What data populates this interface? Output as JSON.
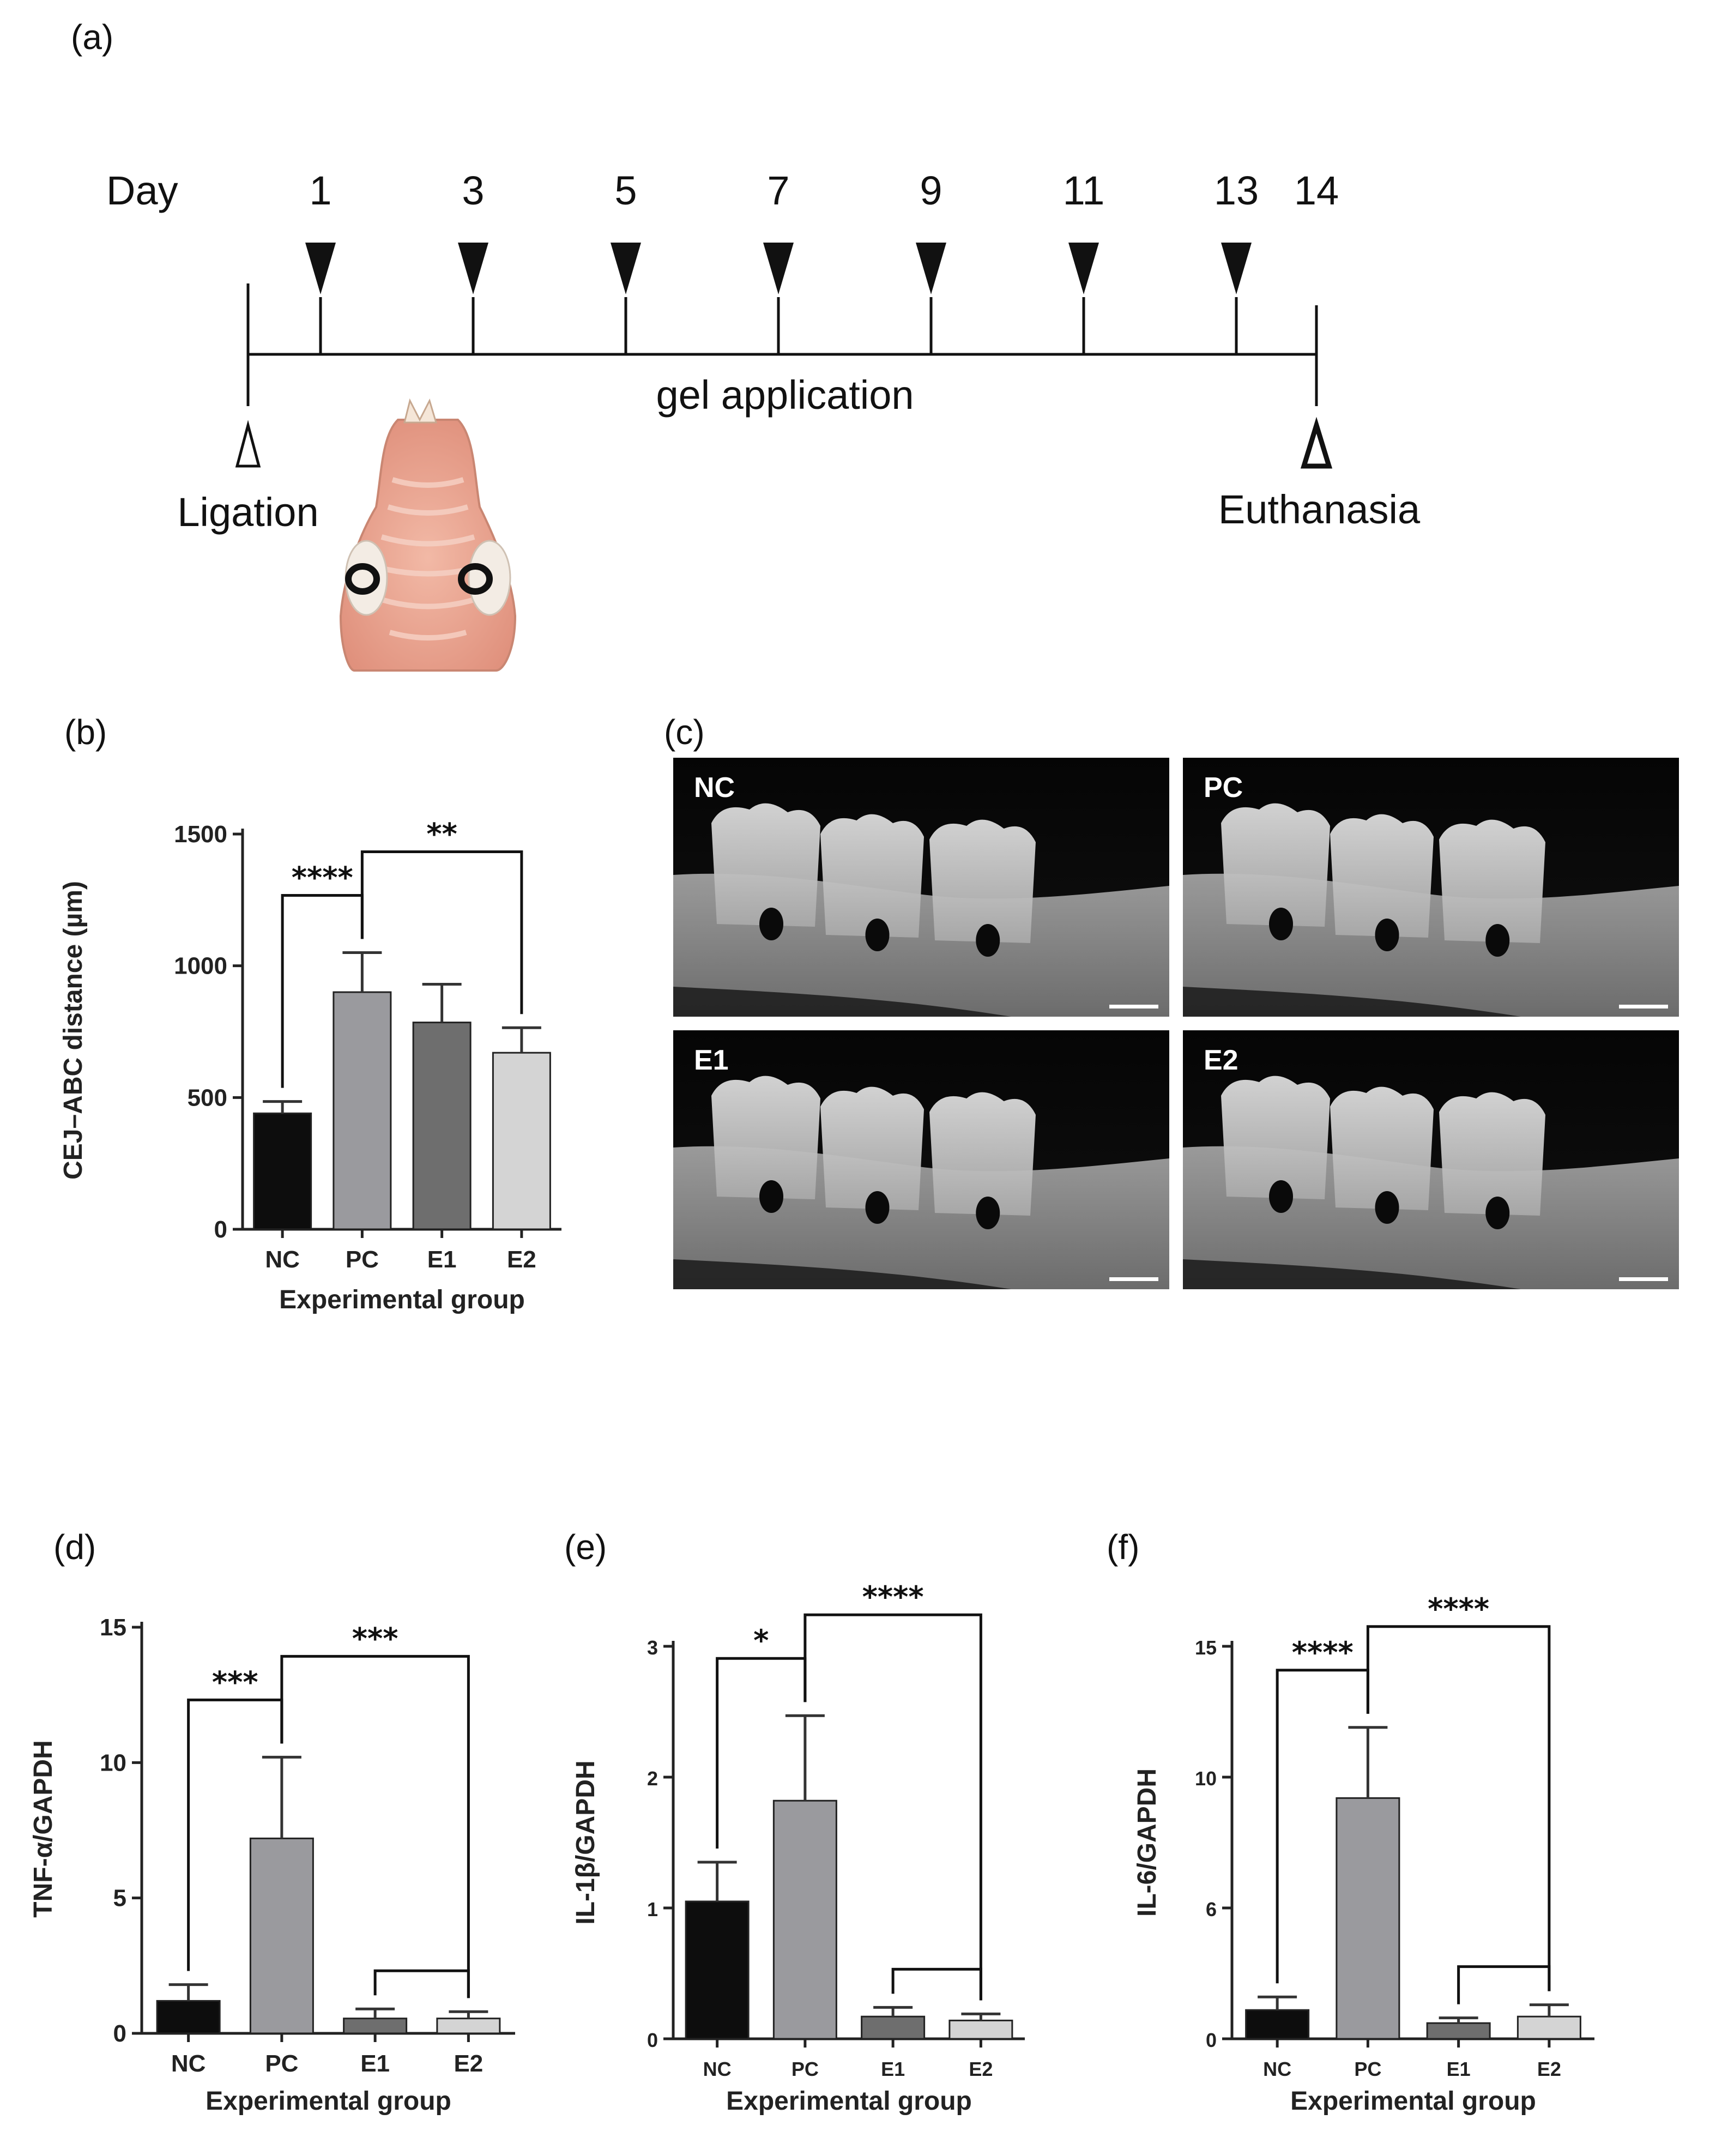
{
  "panel_labels": {
    "a": "(a)",
    "b": "(b)",
    "c": "(c)",
    "d": "(d)",
    "e": "(e)",
    "f": "(f)"
  },
  "timeline": {
    "day_label": "Day",
    "days": [
      "1",
      "3",
      "5",
      "7",
      "9",
      "11",
      "13",
      "14"
    ],
    "bar_label": "gel application",
    "start_label": "Ligation",
    "end_label": "Euthanasia"
  },
  "ct_images": {
    "labels": [
      "NC",
      "PC",
      "E1",
      "E2"
    ]
  },
  "colors": {
    "NC": "#0d0d0d",
    "PC": "#9a9a9e",
    "E1": "#6e6e6e",
    "E2": "#d4d4d4"
  },
  "chart_data": [
    {
      "id": "b",
      "type": "bar",
      "categories": [
        "NC",
        "PC",
        "E1",
        "E2"
      ],
      "values": [
        440,
        900,
        785,
        670
      ],
      "errors": [
        45,
        150,
        145,
        95
      ],
      "xlabel": "Experimental group",
      "ylabel": "CEJ–ABC distance (µm)",
      "ylim": [
        0,
        1500
      ],
      "yticks": [
        "0",
        "500",
        "1000",
        "1500"
      ],
      "significance": [
        {
          "from": 0,
          "to": 1,
          "label": "****"
        },
        {
          "from": 1,
          "to": 3,
          "label": "**"
        }
      ]
    },
    {
      "id": "d",
      "type": "bar",
      "categories": [
        "NC",
        "PC",
        "E1",
        "E2"
      ],
      "values": [
        1.2,
        7.2,
        0.55,
        0.55
      ],
      "errors": [
        0.6,
        3.0,
        0.35,
        0.25
      ],
      "xlabel": "Experimental group",
      "ylabel": "TNF-α/GAPDH",
      "ylim": [
        0,
        15
      ],
      "yticks": [
        "0",
        "5",
        "10",
        "15"
      ],
      "significance": [
        {
          "from": 0,
          "to": 1,
          "label": "***"
        },
        {
          "from": 1,
          "to": 3,
          "label": "***"
        },
        {
          "from": 2,
          "to": 3,
          "label": ""
        }
      ]
    },
    {
      "id": "e",
      "type": "bar",
      "categories": [
        "NC",
        "PC",
        "E1",
        "E2"
      ],
      "values": [
        1.05,
        1.82,
        0.17,
        0.14
      ],
      "errors": [
        0.3,
        0.65,
        0.07,
        0.05
      ],
      "xlabel": "Experimental group",
      "ylabel": "IL-1β/GAPDH",
      "ylim": [
        0,
        3
      ],
      "yticks": [
        "0",
        "1",
        "2",
        "3"
      ],
      "significance": [
        {
          "from": 0,
          "to": 1,
          "label": "*"
        },
        {
          "from": 1,
          "to": 3,
          "label": "****"
        },
        {
          "from": 2,
          "to": 3,
          "label": ""
        }
      ]
    },
    {
      "id": "f",
      "type": "bar",
      "categories": [
        "NC",
        "PC",
        "E1",
        "E2"
      ],
      "values": [
        1.1,
        9.2,
        0.6,
        0.85
      ],
      "errors": [
        0.5,
        2.7,
        0.2,
        0.45
      ],
      "xlabel": "Experimental group",
      "ylabel": "IL-6/GAPDH",
      "ylim": [
        0,
        15
      ],
      "yticks": [
        "0",
        "6",
        "10",
        "15"
      ],
      "significance": [
        {
          "from": 0,
          "to": 1,
          "label": "****"
        },
        {
          "from": 1,
          "to": 3,
          "label": "****"
        },
        {
          "from": 2,
          "to": 3,
          "label": ""
        }
      ]
    }
  ]
}
